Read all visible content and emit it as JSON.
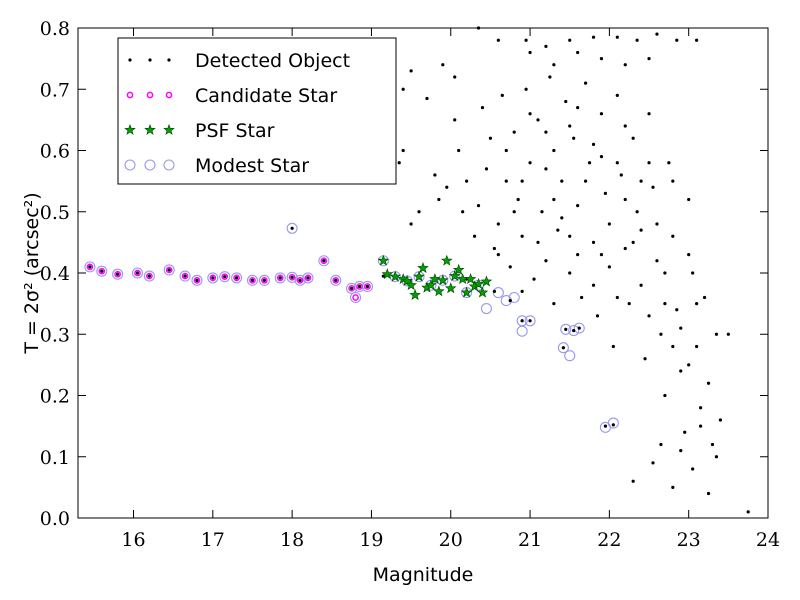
{
  "chart_data": {
    "type": "scatter",
    "xlabel": "Magnitude",
    "ylabel": "T = 2σ² (arcsec²)",
    "xlim": [
      15.3,
      24.0
    ],
    "ylim": [
      0.0,
      0.8
    ],
    "xticks": [
      16,
      17,
      18,
      19,
      20,
      21,
      22,
      23,
      24
    ],
    "yticks": [
      0.0,
      0.1,
      0.2,
      0.3,
      0.4,
      0.5,
      0.6,
      0.7,
      0.8
    ],
    "grid": false,
    "legend_position": "top-left",
    "series": [
      {
        "name": "Detected Object",
        "marker": "dot",
        "color": "#000000",
        "points": [
          [
            15.45,
            0.41
          ],
          [
            15.6,
            0.403
          ],
          [
            15.8,
            0.398
          ],
          [
            16.05,
            0.4
          ],
          [
            16.2,
            0.395
          ],
          [
            16.45,
            0.405
          ],
          [
            16.65,
            0.395
          ],
          [
            16.8,
            0.388
          ],
          [
            17.0,
            0.392
          ],
          [
            17.15,
            0.394
          ],
          [
            17.3,
            0.392
          ],
          [
            17.5,
            0.388
          ],
          [
            17.65,
            0.388
          ],
          [
            17.85,
            0.392
          ],
          [
            18.0,
            0.473
          ],
          [
            18.0,
            0.393
          ],
          [
            18.1,
            0.388
          ],
          [
            18.2,
            0.392
          ],
          [
            18.4,
            0.42
          ],
          [
            18.55,
            0.388
          ],
          [
            18.75,
            0.375
          ],
          [
            18.85,
            0.378
          ],
          [
            18.95,
            0.378
          ],
          [
            19.15,
            0.395
          ],
          [
            19.3,
            0.394
          ],
          [
            19.45,
            0.387
          ],
          [
            19.6,
            0.394
          ],
          [
            19.75,
            0.38
          ],
          [
            19.9,
            0.388
          ],
          [
            20.05,
            0.395
          ],
          [
            20.2,
            0.39
          ],
          [
            20.35,
            0.38
          ],
          [
            20.55,
            0.37
          ],
          [
            20.75,
            0.355
          ],
          [
            20.9,
            0.322
          ],
          [
            21.0,
            0.322
          ],
          [
            21.42,
            0.278
          ],
          [
            21.45,
            0.308
          ],
          [
            21.55,
            0.306
          ],
          [
            21.62,
            0.31
          ],
          [
            21.95,
            0.15
          ],
          [
            22.05,
            0.152
          ],
          [
            20.35,
            0.8
          ],
          [
            20.6,
            0.78
          ],
          [
            20.95,
            0.78
          ],
          [
            21.2,
            0.77
          ],
          [
            21.5,
            0.78
          ],
          [
            21.8,
            0.785
          ],
          [
            22.1,
            0.785
          ],
          [
            22.35,
            0.78
          ],
          [
            22.6,
            0.79
          ],
          [
            22.85,
            0.78
          ],
          [
            23.1,
            0.78
          ],
          [
            21.0,
            0.76
          ],
          [
            21.3,
            0.74
          ],
          [
            21.6,
            0.76
          ],
          [
            21.9,
            0.75
          ],
          [
            22.2,
            0.74
          ],
          [
            22.5,
            0.75
          ],
          [
            19.25,
            0.72
          ],
          [
            19.4,
            0.7
          ],
          [
            19.5,
            0.73
          ],
          [
            19.7,
            0.685
          ],
          [
            19.9,
            0.74
          ],
          [
            20.05,
            0.72
          ],
          [
            19.4,
            0.6
          ],
          [
            19.35,
            0.58
          ],
          [
            19.6,
            0.5
          ],
          [
            19.5,
            0.48
          ],
          [
            19.8,
            0.56
          ],
          [
            19.85,
            0.52
          ],
          [
            19.95,
            0.54
          ],
          [
            20.05,
            0.65
          ],
          [
            20.1,
            0.6
          ],
          [
            20.15,
            0.5
          ],
          [
            20.2,
            0.55
          ],
          [
            20.3,
            0.46
          ],
          [
            20.35,
            0.51
          ],
          [
            20.4,
            0.67
          ],
          [
            20.45,
            0.57
          ],
          [
            20.5,
            0.62
          ],
          [
            20.55,
            0.44
          ],
          [
            20.6,
            0.48
          ],
          [
            20.65,
            0.69
          ],
          [
            20.7,
            0.55
          ],
          [
            20.75,
            0.41
          ],
          [
            20.8,
            0.63
          ],
          [
            20.85,
            0.52
          ],
          [
            20.9,
            0.46
          ],
          [
            20.95,
            0.7
          ],
          [
            21.0,
            0.58
          ],
          [
            21.05,
            0.39
          ],
          [
            21.1,
            0.65
          ],
          [
            21.15,
            0.5
          ],
          [
            21.2,
            0.42
          ],
          [
            21.25,
            0.72
          ],
          [
            21.3,
            0.6
          ],
          [
            21.35,
            0.47
          ],
          [
            21.4,
            0.55
          ],
          [
            21.45,
            0.68
          ],
          [
            21.5,
            0.4
          ],
          [
            21.55,
            0.62
          ],
          [
            21.6,
            0.51
          ],
          [
            21.65,
            0.36
          ],
          [
            21.7,
            0.71
          ],
          [
            21.75,
            0.58
          ],
          [
            21.8,
            0.45
          ],
          [
            21.85,
            0.33
          ],
          [
            21.9,
            0.66
          ],
          [
            21.95,
            0.53
          ],
          [
            22.0,
            0.41
          ],
          [
            22.05,
            0.28
          ],
          [
            22.1,
            0.69
          ],
          [
            22.15,
            0.56
          ],
          [
            22.2,
            0.44
          ],
          [
            22.25,
            0.35
          ],
          [
            22.3,
            0.62
          ],
          [
            22.35,
            0.5
          ],
          [
            22.4,
            0.38
          ],
          [
            22.45,
            0.26
          ],
          [
            22.5,
            0.66
          ],
          [
            22.55,
            0.54
          ],
          [
            22.6,
            0.42
          ],
          [
            22.65,
            0.3
          ],
          [
            22.7,
            0.2
          ],
          [
            22.75,
            0.58
          ],
          [
            22.8,
            0.46
          ],
          [
            22.85,
            0.34
          ],
          [
            22.9,
            0.24
          ],
          [
            22.95,
            0.14
          ],
          [
            23.0,
            0.52
          ],
          [
            23.05,
            0.4
          ],
          [
            23.1,
            0.28
          ],
          [
            23.15,
            0.18
          ],
          [
            23.2,
            0.36
          ],
          [
            23.25,
            0.22
          ],
          [
            23.3,
            0.12
          ],
          [
            23.35,
            0.3
          ],
          [
            23.4,
            0.16
          ],
          [
            23.5,
            0.3
          ],
          [
            22.3,
            0.06
          ],
          [
            22.55,
            0.09
          ],
          [
            22.8,
            0.05
          ],
          [
            23.05,
            0.08
          ],
          [
            23.25,
            0.04
          ],
          [
            23.75,
            0.01
          ],
          [
            22.65,
            0.12
          ],
          [
            22.9,
            0.11
          ],
          [
            23.15,
            0.15
          ],
          [
            23.35,
            0.1
          ],
          [
            20.6,
            0.43
          ],
          [
            20.7,
            0.6
          ],
          [
            20.8,
            0.5
          ],
          [
            20.9,
            0.37
          ],
          [
            21.0,
            0.66
          ],
          [
            21.1,
            0.45
          ],
          [
            21.2,
            0.57
          ],
          [
            21.3,
            0.35
          ],
          [
            21.4,
            0.49
          ],
          [
            21.5,
            0.64
          ],
          [
            21.6,
            0.43
          ],
          [
            21.7,
            0.55
          ],
          [
            21.8,
            0.38
          ],
          [
            21.9,
            0.59
          ],
          [
            22.0,
            0.48
          ],
          [
            22.1,
            0.36
          ],
          [
            22.2,
            0.64
          ],
          [
            22.3,
            0.45
          ],
          [
            22.4,
            0.55
          ],
          [
            22.5,
            0.33
          ],
          [
            22.6,
            0.48
          ],
          [
            22.7,
            0.4
          ],
          [
            22.8,
            0.55
          ],
          [
            22.9,
            0.31
          ],
          [
            23.0,
            0.43
          ],
          [
            23.1,
            0.35
          ],
          [
            21.3,
            0.52
          ],
          [
            21.6,
            0.67
          ],
          [
            21.9,
            0.43
          ],
          [
            22.2,
            0.52
          ],
          [
            22.5,
            0.58
          ],
          [
            22.8,
            0.28
          ],
          [
            20.9,
            0.55
          ],
          [
            21.2,
            0.63
          ],
          [
            21.5,
            0.46
          ],
          [
            21.8,
            0.61
          ],
          [
            22.1,
            0.58
          ],
          [
            22.4,
            0.47
          ],
          [
            22.7,
            0.35
          ],
          [
            23.0,
            0.25
          ]
        ]
      },
      {
        "name": "Candidate Star",
        "marker": "circle",
        "color": "#ff00ff",
        "points": [
          [
            15.45,
            0.41
          ],
          [
            15.6,
            0.403
          ],
          [
            15.8,
            0.398
          ],
          [
            16.05,
            0.4
          ],
          [
            16.2,
            0.395
          ],
          [
            16.45,
            0.405
          ],
          [
            16.65,
            0.395
          ],
          [
            16.8,
            0.388
          ],
          [
            17.0,
            0.392
          ],
          [
            17.15,
            0.394
          ],
          [
            17.3,
            0.392
          ],
          [
            17.5,
            0.388
          ],
          [
            17.65,
            0.388
          ],
          [
            17.85,
            0.392
          ],
          [
            18.0,
            0.393
          ],
          [
            18.1,
            0.388
          ],
          [
            18.2,
            0.392
          ],
          [
            18.4,
            0.42
          ],
          [
            18.55,
            0.388
          ],
          [
            18.75,
            0.375
          ],
          [
            18.8,
            0.36
          ],
          [
            18.85,
            0.378
          ],
          [
            18.95,
            0.378
          ]
        ]
      },
      {
        "name": "PSF Star",
        "marker": "star",
        "color": "#00a000",
        "points": [
          [
            19.15,
            0.42
          ],
          [
            19.2,
            0.398
          ],
          [
            19.3,
            0.394
          ],
          [
            19.4,
            0.39
          ],
          [
            19.45,
            0.387
          ],
          [
            19.5,
            0.38
          ],
          [
            19.55,
            0.364
          ],
          [
            19.6,
            0.394
          ],
          [
            19.65,
            0.408
          ],
          [
            19.7,
            0.376
          ],
          [
            19.75,
            0.38
          ],
          [
            19.8,
            0.39
          ],
          [
            19.85,
            0.37
          ],
          [
            19.9,
            0.388
          ],
          [
            19.95,
            0.42
          ],
          [
            20.0,
            0.375
          ],
          [
            20.05,
            0.395
          ],
          [
            20.1,
            0.405
          ],
          [
            20.15,
            0.39
          ],
          [
            20.2,
            0.368
          ],
          [
            20.25,
            0.39
          ],
          [
            20.3,
            0.378
          ],
          [
            20.35,
            0.382
          ],
          [
            20.4,
            0.368
          ],
          [
            20.45,
            0.386
          ]
        ]
      },
      {
        "name": "Modest Star",
        "marker": "hollow-circle",
        "color": "#9999ee",
        "points": [
          [
            15.45,
            0.41
          ],
          [
            15.6,
            0.403
          ],
          [
            15.8,
            0.398
          ],
          [
            16.05,
            0.4
          ],
          [
            16.2,
            0.395
          ],
          [
            16.45,
            0.405
          ],
          [
            16.65,
            0.395
          ],
          [
            16.8,
            0.388
          ],
          [
            17.0,
            0.392
          ],
          [
            17.15,
            0.394
          ],
          [
            17.3,
            0.392
          ],
          [
            17.5,
            0.388
          ],
          [
            17.65,
            0.388
          ],
          [
            17.85,
            0.392
          ],
          [
            18.0,
            0.473
          ],
          [
            18.0,
            0.393
          ],
          [
            18.1,
            0.388
          ],
          [
            18.2,
            0.392
          ],
          [
            18.4,
            0.42
          ],
          [
            18.55,
            0.388
          ],
          [
            18.75,
            0.375
          ],
          [
            18.8,
            0.36
          ],
          [
            18.85,
            0.378
          ],
          [
            18.95,
            0.378
          ],
          [
            19.15,
            0.42
          ],
          [
            19.3,
            0.394
          ],
          [
            19.45,
            0.387
          ],
          [
            19.6,
            0.394
          ],
          [
            19.75,
            0.38
          ],
          [
            19.9,
            0.388
          ],
          [
            20.05,
            0.395
          ],
          [
            20.2,
            0.368
          ],
          [
            20.35,
            0.38
          ],
          [
            20.45,
            0.342
          ],
          [
            20.6,
            0.368
          ],
          [
            20.7,
            0.355
          ],
          [
            20.8,
            0.36
          ],
          [
            20.9,
            0.322
          ],
          [
            20.9,
            0.305
          ],
          [
            21.0,
            0.322
          ],
          [
            21.42,
            0.278
          ],
          [
            21.45,
            0.308
          ],
          [
            21.5,
            0.265
          ],
          [
            21.55,
            0.306
          ],
          [
            21.62,
            0.31
          ],
          [
            21.95,
            0.148
          ],
          [
            22.05,
            0.155
          ]
        ]
      }
    ]
  }
}
